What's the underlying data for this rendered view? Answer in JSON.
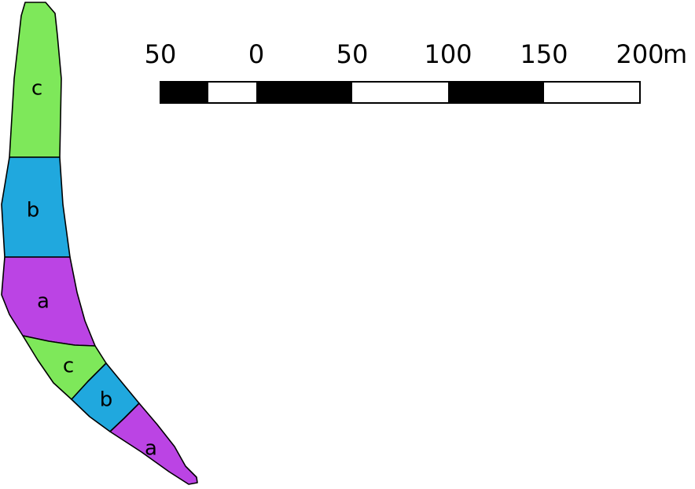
{
  "colors": {
    "a": "#bb44e4",
    "b": "#20a8de",
    "c": "#7ee85a",
    "dark": "#000000",
    "light": "#ffffff"
  },
  "zones": [
    {
      "id": "zone-c-upper",
      "label": "c",
      "type": "c"
    },
    {
      "id": "zone-b-upper",
      "label": "b",
      "type": "b"
    },
    {
      "id": "zone-a-upper",
      "label": "a",
      "type": "a"
    },
    {
      "id": "zone-c-lower",
      "label": "c",
      "type": "c"
    },
    {
      "id": "zone-b-lower",
      "label": "b",
      "type": "b"
    },
    {
      "id": "zone-a-lower",
      "label": "a",
      "type": "a"
    }
  ],
  "scale_bar": {
    "ticks": [
      "50",
      "0",
      "50",
      "100",
      "150",
      "200"
    ],
    "unit": "m",
    "segments": [
      {
        "from": -50,
        "to": -25,
        "fill": "dark"
      },
      {
        "from": -25,
        "to": 0,
        "fill": "light"
      },
      {
        "from": 0,
        "to": 50,
        "fill": "dark"
      },
      {
        "from": 50,
        "to": 100,
        "fill": "light"
      },
      {
        "from": 100,
        "to": 150,
        "fill": "dark"
      },
      {
        "from": 150,
        "to": 200,
        "fill": "light"
      }
    ]
  }
}
